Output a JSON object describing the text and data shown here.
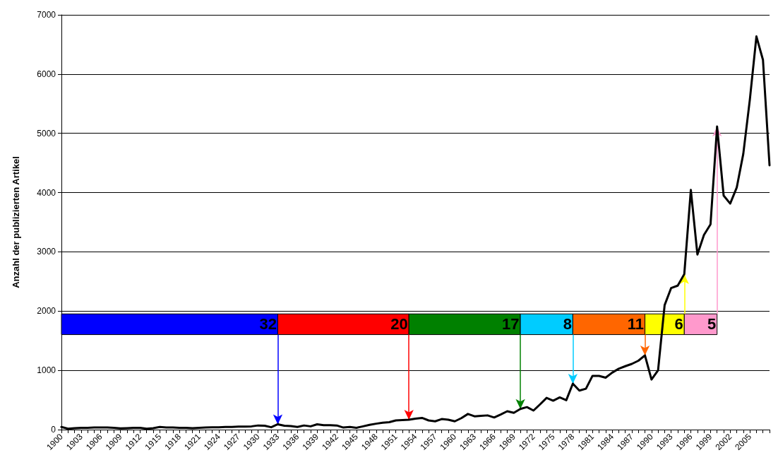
{
  "chart_data": {
    "type": "line",
    "ylabel": "Anzahl der publizierten Artikel",
    "x": [
      1900,
      1901,
      1902,
      1903,
      1904,
      1905,
      1906,
      1907,
      1908,
      1909,
      1910,
      1911,
      1912,
      1913,
      1914,
      1915,
      1916,
      1917,
      1918,
      1919,
      1920,
      1921,
      1922,
      1923,
      1924,
      1925,
      1926,
      1927,
      1928,
      1929,
      1930,
      1931,
      1932,
      1933,
      1934,
      1935,
      1936,
      1937,
      1938,
      1939,
      1940,
      1941,
      1942,
      1943,
      1944,
      1945,
      1946,
      1947,
      1948,
      1949,
      1950,
      1951,
      1952,
      1953,
      1954,
      1955,
      1956,
      1957,
      1958,
      1959,
      1960,
      1961,
      1962,
      1963,
      1964,
      1965,
      1966,
      1967,
      1968,
      1969,
      1970,
      1971,
      1972,
      1973,
      1974,
      1975,
      1976,
      1977,
      1978,
      1979,
      1980,
      1981,
      1982,
      1983,
      1984,
      1985,
      1986,
      1987,
      1988,
      1989,
      1990,
      1991,
      1992,
      1993,
      1994,
      1995,
      1996,
      1997,
      1998,
      1999,
      2000,
      2001,
      2002,
      2003,
      2004,
      2005,
      2006,
      2007,
      2008
    ],
    "series": [
      {
        "color": "#000000",
        "values": [
          45,
          15,
          25,
          30,
          30,
          35,
          35,
          35,
          30,
          20,
          25,
          30,
          30,
          15,
          25,
          45,
          35,
          35,
          30,
          30,
          25,
          30,
          35,
          40,
          40,
          45,
          45,
          50,
          50,
          55,
          70,
          65,
          40,
          90,
          65,
          60,
          45,
          70,
          55,
          90,
          75,
          75,
          70,
          35,
          45,
          30,
          55,
          80,
          100,
          115,
          125,
          155,
          160,
          167,
          186,
          198,
          155,
          140,
          178,
          167,
          140,
          194,
          264,
          225,
          233,
          240,
          205,
          256,
          310,
          283,
          349,
          380,
          322,
          426,
          535,
          488,
          543,
          496,
          775,
          659,
          690,
          907,
          907,
          876,
          961,
          1027,
          1070,
          1109,
          1163,
          1252,
          845,
          1000,
          2100,
          2390,
          2430,
          2625,
          4045,
          2955,
          3285,
          3465,
          5115,
          3950,
          3815,
          4085,
          4655,
          5570,
          6635,
          6240,
          4460
        ]
      }
    ],
    "xlim": [
      1900,
      2008
    ],
    "xticks": [
      1900,
      1903,
      1906,
      1909,
      1912,
      1915,
      1918,
      1921,
      1924,
      1927,
      1930,
      1933,
      1936,
      1939,
      1942,
      1945,
      1948,
      1951,
      1954,
      1957,
      1960,
      1963,
      1966,
      1969,
      1972,
      1975,
      1978,
      1981,
      1984,
      1987,
      1990,
      1993,
      1996,
      1999,
      2002,
      2005
    ],
    "ylim": [
      0,
      7000
    ],
    "yticks": [
      0,
      1000,
      2000,
      3000,
      4000,
      5000,
      6000,
      7000
    ],
    "grid": "y",
    "marker": "none",
    "line_style": "solid",
    "bands": [
      {
        "axis": "x",
        "from": 1900,
        "to": 1933,
        "label": "32",
        "color": "#0000ff"
      },
      {
        "axis": "x",
        "from": 1933,
        "to": 1953,
        "label": "20",
        "color": "#ff0000"
      },
      {
        "axis": "x",
        "from": 1953,
        "to": 1970,
        "label": "17",
        "color": "#008000"
      },
      {
        "axis": "x",
        "from": 1970,
        "to": 1978,
        "label": "8",
        "color": "#00ccff"
      },
      {
        "axis": "x",
        "from": 1978,
        "to": 1989,
        "label": "11",
        "color": "#ff6600"
      },
      {
        "axis": "x",
        "from": 1989,
        "to": 1995,
        "label": "6",
        "color": "#ffff00"
      },
      {
        "axis": "x",
        "from": 1995,
        "to": 2000,
        "label": "5",
        "color": "#ff99cc"
      }
    ]
  }
}
